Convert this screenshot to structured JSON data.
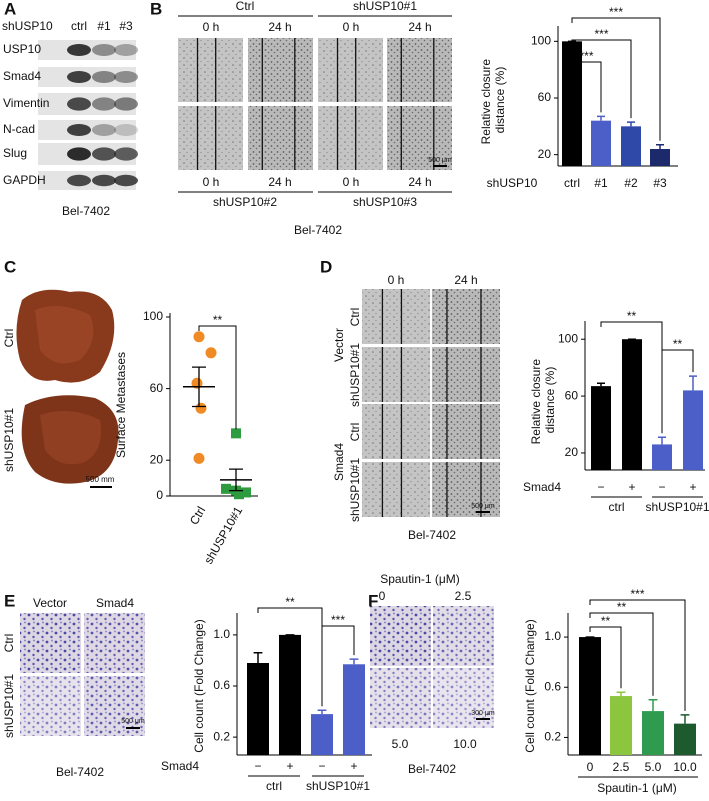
{
  "panels": {
    "A": {
      "label": "A",
      "group": "shUSP10",
      "lanes": [
        "ctrl",
        "#1",
        "#3"
      ],
      "proteins": [
        "USP10",
        "Smad4",
        "Vimentin",
        "N-cad",
        "Slug",
        "GAPDH"
      ],
      "cell_line": "Bel-7402"
    },
    "B": {
      "label": "B",
      "top_groups": [
        "Ctrl",
        "shUSP10#1"
      ],
      "top_times": [
        "0 h",
        "24 h",
        "0 h",
        "24 h"
      ],
      "bottom_times": [
        "0 h",
        "24 h",
        "0 h",
        "24 h"
      ],
      "bottom_groups": [
        "shUSP10#2",
        "shUSP10#3"
      ],
      "scale_bar": "500 μm",
      "cell_line": "Bel-7402"
    },
    "C": {
      "label": "C",
      "rows": [
        "Ctrl",
        "shUSP10#1"
      ],
      "scale_bar": "500 mm"
    },
    "D": {
      "label": "D",
      "times": [
        "0 h",
        "24 h"
      ],
      "groups": [
        "Vector",
        "Smad4"
      ],
      "rows": [
        "Ctrl",
        "shUSP10#1",
        "Ctrl",
        "shUSP10#1"
      ],
      "scale_bar": "500 μm",
      "cell_line": "Bel-7402"
    },
    "E": {
      "label": "E",
      "columns": [
        "Vector",
        "Smad4"
      ],
      "rows": [
        "Ctrl",
        "shUSP10#1"
      ],
      "scale_bar": "500 μm",
      "cell_line": "Bel-7402"
    },
    "F": {
      "label": "F",
      "treatment": "Spautin-1 (μM)",
      "doses": [
        "0",
        "2.5",
        "5.0",
        "10.0"
      ],
      "scale_bar": "300 μm",
      "cell_line": "Bel-7402"
    }
  },
  "chart_data": [
    {
      "type": "bar",
      "y_label": "Relative closure distance (%)",
      "x_label": "shUSP10",
      "categories": [
        "ctrl",
        "#1",
        "#2",
        "#3"
      ],
      "values": [
        100,
        44,
        40,
        24
      ],
      "errors": [
        0,
        3,
        3,
        3
      ],
      "colors": [
        "#000000",
        "#4c5fc8",
        "#2f49a8",
        "#1c2a6b"
      ],
      "ylim": [
        12,
        108
      ],
      "yticks": [
        20,
        60,
        100
      ],
      "annotations": [
        "***",
        "***",
        "***"
      ]
    },
    {
      "type": "dot",
      "y_label": "Surface Metastases",
      "categories": [
        "Ctrl",
        "shUSP10#1"
      ],
      "groups": [
        {
          "values": [
            89,
            80,
            63,
            49,
            21
          ],
          "mean": 61,
          "error": 11,
          "color": "#f08a24",
          "marker": "circle"
        },
        {
          "values": [
            35,
            4,
            3,
            2,
            1
          ],
          "mean": 9,
          "error": 6,
          "color": "#2e9b3f",
          "marker": "square"
        }
      ],
      "ylim": [
        0,
        100
      ],
      "yticks": [
        0,
        20,
        60,
        100
      ],
      "annotations": [
        "**"
      ]
    },
    {
      "type": "bar",
      "y_label": "Relative closure distance (%)",
      "category_label": "Smad4",
      "categories": [
        "−",
        "+",
        "−",
        "+"
      ],
      "groups": [
        "ctrl",
        "shUSP10#1"
      ],
      "values": [
        67,
        100,
        26,
        64
      ],
      "errors": [
        2,
        0,
        5,
        10
      ],
      "colors": [
        "#000000",
        "#000000",
        "#4c5fc8",
        "#4c5fc8"
      ],
      "ylim": [
        8,
        110
      ],
      "yticks": [
        20,
        60,
        100
      ],
      "annotations": [
        "**",
        "**"
      ]
    },
    {
      "type": "bar",
      "y_label": "Cell count (Fold Change)",
      "category_label": "Smad4",
      "categories": [
        "−",
        "+",
        "−",
        "+"
      ],
      "groups": [
        "ctrl",
        "shUSP10#1"
      ],
      "values": [
        0.78,
        1.0,
        0.38,
        0.77
      ],
      "errors": [
        0.08,
        0,
        0.03,
        0.04
      ],
      "colors": [
        "#000000",
        "#000000",
        "#4c5fc8",
        "#4c5fc8"
      ],
      "ylim": [
        0.06,
        1.14
      ],
      "yticks": [
        0.2,
        0.6,
        {
          "value": 1,
          "label": "1.0"
        }
      ],
      "annotations": [
        "**",
        "***"
      ]
    },
    {
      "type": "bar",
      "y_label": "Cell count (Fold Change)",
      "x_label": "Spautin-1 (μM)",
      "categories": [
        "0",
        "2.5",
        "5.0",
        "10.0"
      ],
      "values": [
        1.0,
        0.53,
        0.41,
        0.31
      ],
      "errors": [
        0,
        0.03,
        0.09,
        0.07
      ],
      "colors": [
        "#000000",
        "#8cc63f",
        "#2e9b4f",
        "#1d5a2e"
      ],
      "ylim": [
        0.06,
        1.16
      ],
      "yticks": [
        0.2,
        0.6,
        {
          "value": 1,
          "label": "1.0"
        }
      ],
      "annotations": [
        "***",
        "**",
        "**"
      ]
    }
  ]
}
